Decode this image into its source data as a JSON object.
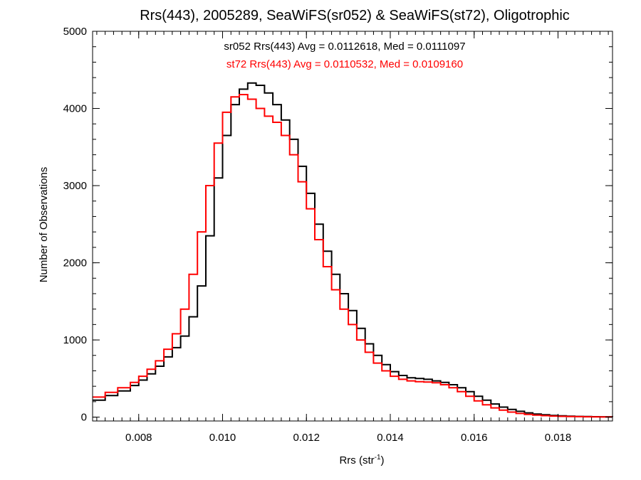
{
  "chart_data": {
    "type": "line",
    "title": "Rrs(443), 2005289, SeaWiFS(sr052) & SeaWiFS(st72), Oligotrophic",
    "xlabel": "Rrs (str",
    "xlabel_superscript": "-1",
    "xlabel_suffix": ")",
    "ylabel": "Number of Observations",
    "xlim": [
      0.0069,
      0.0193
    ],
    "ylim": [
      -50,
      5000
    ],
    "x_ticks": [
      0.008,
      0.01,
      0.012,
      0.014,
      0.016,
      0.018
    ],
    "x_tick_labels": [
      "0.008",
      "0.010",
      "0.012",
      "0.014",
      "0.016",
      "0.018"
    ],
    "y_ticks": [
      0,
      1000,
      2000,
      3000,
      4000,
      5000
    ],
    "y_tick_labels": [
      "0",
      "1000",
      "2000",
      "3000",
      "4000",
      "5000"
    ],
    "grid": false,
    "legend": "none",
    "annotations": [
      {
        "text": "sr052 Rrs(443) Avg = 0.0112618, Med = 0.0111097",
        "color": "#000000"
      },
      {
        "text": "st72 Rrs(443) Avg = 0.0110532, Med = 0.0109160",
        "color": "#ff0000"
      }
    ],
    "series": [
      {
        "color": "#000000",
        "style": "step",
        "x": [
          0.0069,
          0.0072,
          0.0075,
          0.0078,
          0.008,
          0.0082,
          0.0084,
          0.0086,
          0.0088,
          0.009,
          0.0092,
          0.0094,
          0.0096,
          0.0098,
          0.01,
          0.0102,
          0.0104,
          0.0106,
          0.0108,
          0.011,
          0.0112,
          0.0114,
          0.0116,
          0.0118,
          0.012,
          0.0122,
          0.0124,
          0.0126,
          0.0128,
          0.013,
          0.0132,
          0.0134,
          0.0136,
          0.0138,
          0.014,
          0.0142,
          0.0144,
          0.0146,
          0.0148,
          0.015,
          0.0152,
          0.0154,
          0.0156,
          0.0158,
          0.016,
          0.0162,
          0.0164,
          0.0166,
          0.0168,
          0.017,
          0.0172,
          0.0174,
          0.0176,
          0.0178,
          0.018,
          0.0182,
          0.0184,
          0.0186,
          0.0188,
          0.019,
          0.0193
        ],
        "y": [
          220,
          280,
          340,
          410,
          480,
          560,
          660,
          780,
          900,
          1050,
          1300,
          1700,
          2350,
          3100,
          3650,
          4050,
          4250,
          4330,
          4300,
          4200,
          4050,
          3850,
          3600,
          3250,
          2900,
          2500,
          2150,
          1850,
          1600,
          1380,
          1150,
          950,
          800,
          680,
          590,
          540,
          510,
          500,
          490,
          470,
          450,
          420,
          380,
          330,
          270,
          220,
          170,
          130,
          100,
          75,
          55,
          40,
          30,
          22,
          16,
          12,
          9,
          7,
          5,
          4,
          3
        ]
      },
      {
        "color": "#ff0000",
        "style": "step",
        "x": [
          0.0069,
          0.0072,
          0.0075,
          0.0078,
          0.008,
          0.0082,
          0.0084,
          0.0086,
          0.0088,
          0.009,
          0.0092,
          0.0094,
          0.0096,
          0.0098,
          0.01,
          0.0102,
          0.0104,
          0.0106,
          0.0108,
          0.011,
          0.0112,
          0.0114,
          0.0116,
          0.0118,
          0.012,
          0.0122,
          0.0124,
          0.0126,
          0.0128,
          0.013,
          0.0132,
          0.0134,
          0.0136,
          0.0138,
          0.014,
          0.0142,
          0.0144,
          0.0146,
          0.0148,
          0.015,
          0.0152,
          0.0154,
          0.0156,
          0.0158,
          0.016,
          0.0162,
          0.0164,
          0.0166,
          0.0168,
          0.017,
          0.0172,
          0.0174,
          0.0176,
          0.0178,
          0.018,
          0.0182,
          0.0184,
          0.0186,
          0.0188,
          0.019,
          0.0193
        ],
        "y": [
          260,
          320,
          380,
          450,
          530,
          620,
          730,
          880,
          1080,
          1400,
          1850,
          2400,
          3000,
          3550,
          3950,
          4150,
          4180,
          4120,
          4000,
          3900,
          3820,
          3650,
          3400,
          3050,
          2700,
          2300,
          1950,
          1650,
          1400,
          1200,
          1000,
          840,
          700,
          600,
          530,
          490,
          470,
          460,
          455,
          445,
          420,
          380,
          330,
          270,
          210,
          160,
          120,
          90,
          65,
          48,
          35,
          26,
          19,
          14,
          10,
          8,
          6,
          4,
          3,
          2,
          2
        ]
      }
    ]
  }
}
